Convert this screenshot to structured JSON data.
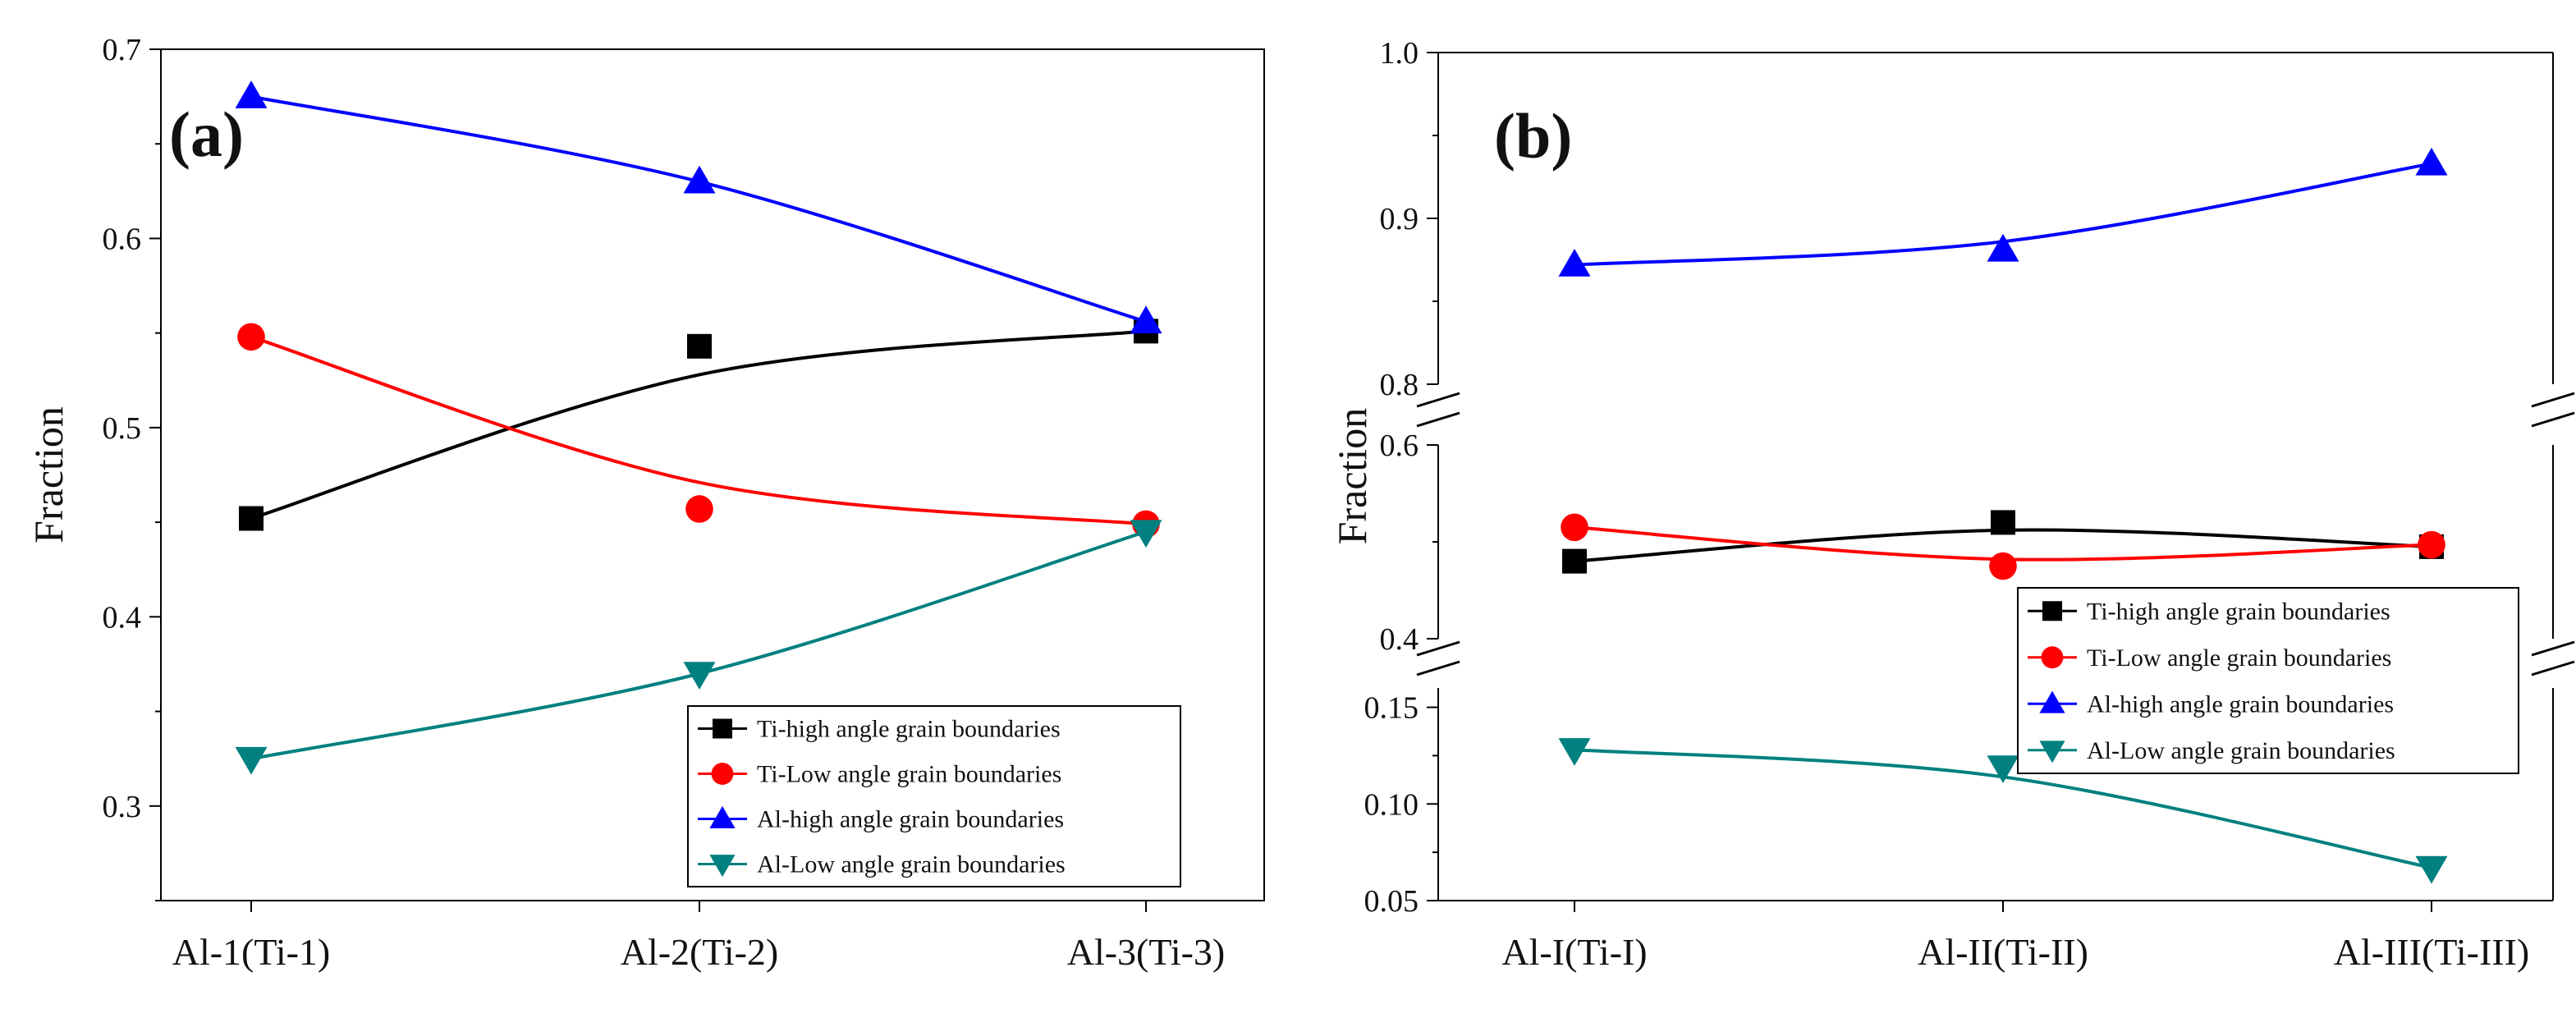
{
  "chart_data": [
    {
      "type": "line",
      "panel_label": "(a)",
      "title": "",
      "xlabel": "",
      "ylabel": "Fraction",
      "categories": [
        "Al-1(Ti-1)",
        "Al-2(Ti-2)",
        "Al-3(Ti-3)"
      ],
      "ylim": [
        0.25,
        0.7
      ],
      "y_ticks": [
        0.3,
        0.4,
        0.5,
        0.6,
        0.7
      ],
      "y_tick_labels": [
        "0.3",
        "0.4",
        "0.5",
        "0.6",
        "0.7"
      ],
      "legend_position": "bottom-right",
      "series": [
        {
          "name": "Ti-high angle grain boundaries",
          "marker": "square",
          "color": "#000000",
          "values": [
            0.452,
            0.543,
            0.551
          ],
          "fit": [
            0.452,
            0.528,
            0.551
          ]
        },
        {
          "name": "Ti-Low angle grain boundaries",
          "marker": "circle",
          "color": "#ff0000",
          "values": [
            0.548,
            0.457,
            0.449
          ],
          "fit": [
            0.548,
            0.471,
            0.449
          ]
        },
        {
          "name": "Al-high angle grain boundaries",
          "marker": "triangle-up",
          "color": "#0000ff",
          "values": [
            0.675,
            0.63,
            0.556
          ],
          "fit": [
            0.675,
            0.63,
            0.556
          ]
        },
        {
          "name": "Al-Low angle grain boundaries",
          "marker": "triangle-down",
          "color": "#008080",
          "values": [
            0.325,
            0.37,
            0.445
          ],
          "fit": [
            0.325,
            0.37,
            0.445
          ]
        }
      ]
    },
    {
      "type": "line",
      "panel_label": "(b)",
      "title": "",
      "xlabel": "",
      "ylabel": "Fraction",
      "categories": [
        "Al-I(Ti-I)",
        "Al-II(Ti-II)",
        "Al-III(Ti-III)"
      ],
      "axis_breaks": true,
      "y_segments": [
        {
          "range": [
            0.8,
            1.0
          ],
          "ticks": [
            0.8,
            0.9,
            1.0
          ],
          "tick_labels": [
            "0.8",
            "0.9",
            "1.0"
          ]
        },
        {
          "range": [
            0.4,
            0.6
          ],
          "ticks": [
            0.4,
            0.6
          ],
          "tick_labels": [
            "0.4",
            "0.6"
          ]
        },
        {
          "range": [
            0.05,
            0.16
          ],
          "ticks": [
            0.05,
            0.1,
            0.15
          ],
          "tick_labels": [
            "0.05",
            "0.10",
            "0.15"
          ]
        }
      ],
      "legend_position": "right",
      "series": [
        {
          "name": "Ti-high angle grain boundaries",
          "marker": "square",
          "color": "#000000",
          "values": [
            0.48,
            0.52,
            0.495
          ],
          "fit": [
            0.48,
            0.512,
            0.495
          ]
        },
        {
          "name": "Ti-Low angle grain boundaries",
          "marker": "circle",
          "color": "#ff0000",
          "values": [
            0.515,
            0.475,
            0.497
          ],
          "fit": [
            0.515,
            0.482,
            0.497
          ]
        },
        {
          "name": "Al-high angle grain boundaries",
          "marker": "triangle-up",
          "color": "#0000ff",
          "values": [
            0.872,
            0.881,
            0.933
          ],
          "fit": [
            0.872,
            0.886,
            0.933
          ]
        },
        {
          "name": "Al-Low angle grain boundaries",
          "marker": "triangle-down",
          "color": "#008080",
          "values": [
            0.128,
            0.119,
            0.067
          ],
          "fit": [
            0.128,
            0.114,
            0.067
          ]
        }
      ]
    }
  ]
}
